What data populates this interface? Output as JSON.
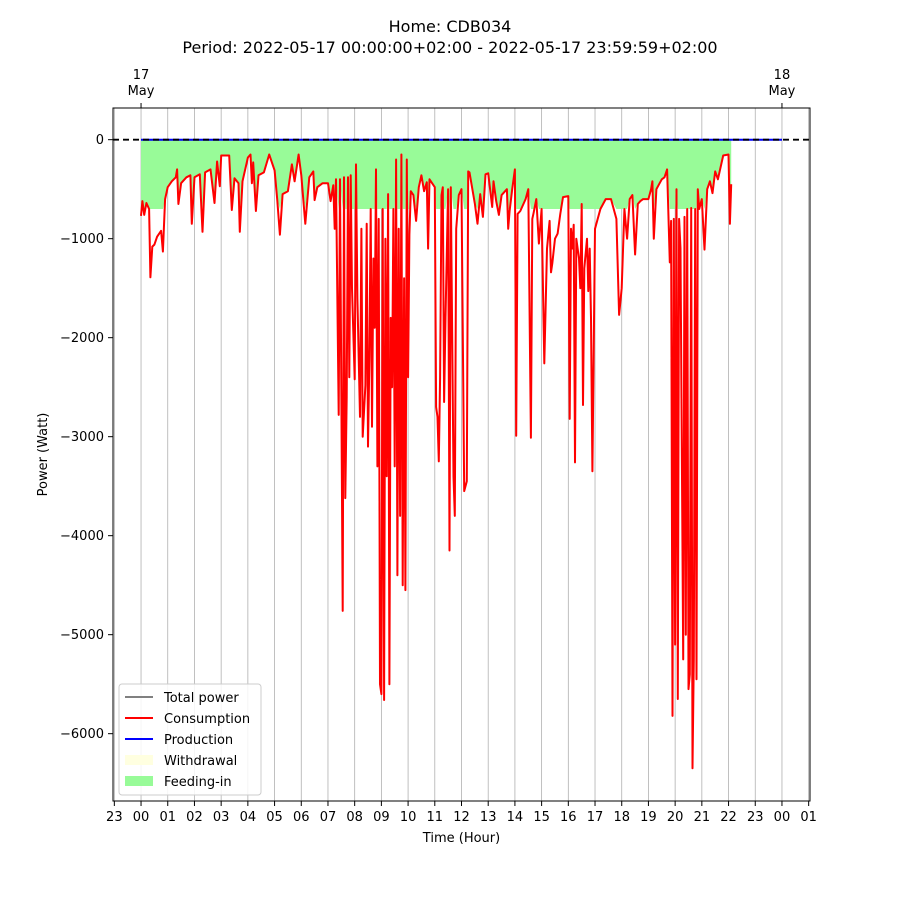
{
  "chart_data": {
    "type": "line",
    "title": "Home: CDB034",
    "subtitle": "Period: 2022-05-17 00:00:00+02:00 - 2022-05-17 23:59:59+02:00",
    "xlabel": "Time (Hour)",
    "ylabel": "Power (Watt)",
    "xlim": [
      -1.05,
      25.05
    ],
    "ylim": [
      -6680,
      320
    ],
    "x_ticks": [
      "23",
      "00",
      "01",
      "02",
      "03",
      "04",
      "05",
      "06",
      "07",
      "08",
      "09",
      "10",
      "11",
      "12",
      "13",
      "14",
      "15",
      "16",
      "17",
      "18",
      "19",
      "20",
      "21",
      "22",
      "23",
      "00",
      "01"
    ],
    "x_tick_values": [
      -1,
      0,
      1,
      2,
      3,
      4,
      5,
      6,
      7,
      8,
      9,
      10,
      11,
      12,
      13,
      14,
      15,
      16,
      17,
      18,
      19,
      20,
      21,
      22,
      23,
      24,
      25
    ],
    "top_ticks": [
      {
        "value": 0,
        "day": "17",
        "month": "May"
      },
      {
        "value": 24,
        "day": "18",
        "month": "May"
      }
    ],
    "y_ticks": [
      0,
      -1000,
      -2000,
      -3000,
      -4000,
      -5000,
      -6000
    ],
    "y_tick_labels": [
      "0",
      "−1000",
      "−2000",
      "−3000",
      "−4000",
      "−5000",
      "−6000"
    ],
    "grid": "vertical-x",
    "legend_position": "lower-left",
    "legend": [
      {
        "label": "Total power",
        "kind": "line",
        "color": "#808080"
      },
      {
        "label": "Consumption",
        "kind": "line",
        "color": "#ff0000"
      },
      {
        "label": "Production",
        "kind": "line",
        "color": "#0000ff"
      },
      {
        "label": "Withdrawal",
        "kind": "patch",
        "color": "#ffffe0"
      },
      {
        "label": "Feeding-in",
        "kind": "patch",
        "color": "#98fb98"
      }
    ],
    "reference_line": {
      "y": 0,
      "style": "dashed",
      "color": "#000000"
    },
    "series": [
      {
        "name": "Consumption",
        "color": "#ff0000",
        "points": [
          [
            0.0,
            -770
          ],
          [
            0.05,
            -620
          ],
          [
            0.12,
            -760
          ],
          [
            0.2,
            -640
          ],
          [
            0.3,
            -700
          ],
          [
            0.35,
            -1390
          ],
          [
            0.42,
            -1080
          ],
          [
            0.5,
            -1060
          ],
          [
            0.6,
            -980
          ],
          [
            0.75,
            -920
          ],
          [
            0.82,
            -1130
          ],
          [
            0.9,
            -600
          ],
          [
            1.0,
            -480
          ],
          [
            1.15,
            -420
          ],
          [
            1.3,
            -380
          ],
          [
            1.35,
            -300
          ],
          [
            1.4,
            -650
          ],
          [
            1.5,
            -440
          ],
          [
            1.7,
            -380
          ],
          [
            1.85,
            -360
          ],
          [
            1.9,
            -850
          ],
          [
            2.0,
            -380
          ],
          [
            2.2,
            -350
          ],
          [
            2.3,
            -930
          ],
          [
            2.4,
            -330
          ],
          [
            2.6,
            -300
          ],
          [
            2.75,
            -640
          ],
          [
            2.85,
            -220
          ],
          [
            2.95,
            -470
          ],
          [
            3.0,
            -160
          ],
          [
            3.3,
            -160
          ],
          [
            3.4,
            -710
          ],
          [
            3.5,
            -390
          ],
          [
            3.65,
            -440
          ],
          [
            3.7,
            -930
          ],
          [
            3.8,
            -420
          ],
          [
            4.0,
            -180
          ],
          [
            4.1,
            -150
          ],
          [
            4.15,
            -440
          ],
          [
            4.2,
            -230
          ],
          [
            4.3,
            -720
          ],
          [
            4.4,
            -360
          ],
          [
            4.6,
            -330
          ],
          [
            4.8,
            -150
          ],
          [
            5.0,
            -310
          ],
          [
            5.1,
            -600
          ],
          [
            5.2,
            -960
          ],
          [
            5.3,
            -550
          ],
          [
            5.5,
            -520
          ],
          [
            5.65,
            -250
          ],
          [
            5.75,
            -420
          ],
          [
            5.9,
            -150
          ],
          [
            6.0,
            -360
          ],
          [
            6.15,
            -850
          ],
          [
            6.3,
            -380
          ],
          [
            6.45,
            -320
          ],
          [
            6.5,
            -610
          ],
          [
            6.6,
            -480
          ],
          [
            6.8,
            -440
          ],
          [
            7.0,
            -440
          ],
          [
            7.1,
            -620
          ],
          [
            7.2,
            -460
          ],
          [
            7.25,
            -900
          ],
          [
            7.3,
            -400
          ],
          [
            7.4,
            -2780
          ],
          [
            7.45,
            -400
          ],
          [
            7.55,
            -4760
          ],
          [
            7.6,
            -380
          ],
          [
            7.65,
            -3620
          ],
          [
            7.7,
            -2600
          ],
          [
            7.75,
            -380
          ],
          [
            7.8,
            -2400
          ],
          [
            7.85,
            -360
          ],
          [
            7.9,
            -1500
          ],
          [
            8.0,
            -2420
          ],
          [
            8.05,
            -250
          ],
          [
            8.1,
            -1600
          ],
          [
            8.2,
            -2800
          ],
          [
            8.25,
            -900
          ],
          [
            8.3,
            -3000
          ],
          [
            8.4,
            -2480
          ],
          [
            8.45,
            -850
          ],
          [
            8.5,
            -3100
          ],
          [
            8.55,
            -2200
          ],
          [
            8.6,
            -700
          ],
          [
            8.65,
            -2900
          ],
          [
            8.7,
            -1200
          ],
          [
            8.75,
            -1900
          ],
          [
            8.8,
            -300
          ],
          [
            8.85,
            -3300
          ],
          [
            8.9,
            -800
          ],
          [
            8.95,
            -5500
          ],
          [
            9.0,
            -5600
          ],
          [
            9.05,
            -700
          ],
          [
            9.1,
            -5660
          ],
          [
            9.15,
            -1000
          ],
          [
            9.2,
            -3400
          ],
          [
            9.25,
            -550
          ],
          [
            9.3,
            -5500
          ],
          [
            9.35,
            -1800
          ],
          [
            9.4,
            -2500
          ],
          [
            9.45,
            -700
          ],
          [
            9.5,
            -3300
          ],
          [
            9.55,
            -200
          ],
          [
            9.6,
            -4400
          ],
          [
            9.65,
            -900
          ],
          [
            9.7,
            -3800
          ],
          [
            9.75,
            -150
          ],
          [
            9.8,
            -4500
          ],
          [
            9.85,
            -1400
          ],
          [
            9.9,
            -4550
          ],
          [
            9.95,
            -200
          ],
          [
            10.0,
            -2400
          ],
          [
            10.05,
            -960
          ],
          [
            10.1,
            -520
          ],
          [
            10.2,
            -560
          ],
          [
            10.3,
            -820
          ],
          [
            10.4,
            -480
          ],
          [
            10.5,
            -360
          ],
          [
            10.6,
            -520
          ],
          [
            10.7,
            -430
          ],
          [
            10.75,
            -1100
          ],
          [
            10.8,
            -400
          ],
          [
            11.0,
            -480
          ],
          [
            11.05,
            -2700
          ],
          [
            11.1,
            -2800
          ],
          [
            11.15,
            -3250
          ],
          [
            11.2,
            -2400
          ],
          [
            11.25,
            -560
          ],
          [
            11.3,
            -480
          ],
          [
            11.35,
            -2650
          ],
          [
            11.4,
            -1800
          ],
          [
            11.5,
            -500
          ],
          [
            11.55,
            -4150
          ],
          [
            11.6,
            -480
          ],
          [
            11.7,
            -3400
          ],
          [
            11.75,
            -3800
          ],
          [
            11.8,
            -900
          ],
          [
            11.9,
            -560
          ],
          [
            12.0,
            -500
          ],
          [
            12.1,
            -3550
          ],
          [
            12.2,
            -3450
          ],
          [
            12.25,
            -320
          ],
          [
            12.3,
            -330
          ],
          [
            12.5,
            -650
          ],
          [
            12.6,
            -850
          ],
          [
            12.7,
            -550
          ],
          [
            12.8,
            -780
          ],
          [
            12.9,
            -350
          ],
          [
            13.0,
            -340
          ],
          [
            13.15,
            -680
          ],
          [
            13.2,
            -420
          ],
          [
            13.3,
            -620
          ],
          [
            13.4,
            -760
          ],
          [
            13.5,
            -560
          ],
          [
            13.6,
            -530
          ],
          [
            13.7,
            -500
          ],
          [
            13.75,
            -900
          ],
          [
            13.8,
            -720
          ],
          [
            13.9,
            -500
          ],
          [
            14.0,
            -300
          ],
          [
            14.05,
            -2990
          ],
          [
            14.1,
            -750
          ],
          [
            14.2,
            -720
          ],
          [
            14.4,
            -600
          ],
          [
            14.5,
            -500
          ],
          [
            14.6,
            -3010
          ],
          [
            14.65,
            -800
          ],
          [
            14.7,
            -740
          ],
          [
            14.8,
            -600
          ],
          [
            14.9,
            -1050
          ],
          [
            15.0,
            -700
          ],
          [
            15.1,
            -2260
          ],
          [
            15.2,
            -1100
          ],
          [
            15.3,
            -820
          ],
          [
            15.35,
            -1340
          ],
          [
            15.4,
            -1250
          ],
          [
            15.5,
            -1000
          ],
          [
            15.6,
            -950
          ],
          [
            15.7,
            -750
          ],
          [
            15.8,
            -580
          ],
          [
            16.0,
            -570
          ],
          [
            16.05,
            -2820
          ],
          [
            16.1,
            -900
          ],
          [
            16.15,
            -1100
          ],
          [
            16.2,
            -860
          ],
          [
            16.25,
            -3260
          ],
          [
            16.3,
            -1000
          ],
          [
            16.4,
            -1200
          ],
          [
            16.45,
            -1500
          ],
          [
            16.5,
            -650
          ],
          [
            16.55,
            -2680
          ],
          [
            16.6,
            -1300
          ],
          [
            16.7,
            -1000
          ],
          [
            16.75,
            -1530
          ],
          [
            16.8,
            -1100
          ],
          [
            16.85,
            -1800
          ],
          [
            16.9,
            -3350
          ],
          [
            17.0,
            -900
          ],
          [
            17.1,
            -800
          ],
          [
            17.2,
            -700
          ],
          [
            17.4,
            -600
          ],
          [
            17.6,
            -600
          ],
          [
            17.8,
            -800
          ],
          [
            17.9,
            -1770
          ],
          [
            18.0,
            -1500
          ],
          [
            18.1,
            -700
          ],
          [
            18.2,
            -1000
          ],
          [
            18.3,
            -600
          ],
          [
            18.4,
            -560
          ],
          [
            18.5,
            -1160
          ],
          [
            18.6,
            -650
          ],
          [
            18.7,
            -620
          ],
          [
            18.8,
            -600
          ],
          [
            19.0,
            -600
          ],
          [
            19.1,
            -500
          ],
          [
            19.15,
            -420
          ],
          [
            19.2,
            -1000
          ],
          [
            19.3,
            -500
          ],
          [
            19.4,
            -450
          ],
          [
            19.5,
            -400
          ],
          [
            19.6,
            -380
          ],
          [
            19.7,
            -300
          ],
          [
            19.8,
            -1240
          ],
          [
            19.85,
            -820
          ],
          [
            19.9,
            -5820
          ],
          [
            19.95,
            -800
          ],
          [
            20.0,
            -5100
          ],
          [
            20.05,
            -500
          ],
          [
            20.1,
            -5650
          ],
          [
            20.15,
            -800
          ],
          [
            20.2,
            -1100
          ],
          [
            20.3,
            -5250
          ],
          [
            20.35,
            -780
          ],
          [
            20.4,
            -5000
          ],
          [
            20.45,
            -700
          ],
          [
            20.5,
            -5550
          ],
          [
            20.55,
            -5400
          ],
          [
            20.6,
            -690
          ],
          [
            20.65,
            -6350
          ],
          [
            20.7,
            -5250
          ],
          [
            20.75,
            -700
          ],
          [
            20.8,
            -5450
          ],
          [
            20.85,
            -500
          ],
          [
            20.9,
            -700
          ],
          [
            21.0,
            -600
          ],
          [
            21.1,
            -1110
          ],
          [
            21.2,
            -500
          ],
          [
            21.3,
            -420
          ],
          [
            21.4,
            -540
          ],
          [
            21.5,
            -320
          ],
          [
            21.6,
            -400
          ],
          [
            21.8,
            -160
          ],
          [
            22.0,
            -150
          ],
          [
            22.05,
            -850
          ],
          [
            22.1,
            -450
          ]
        ]
      },
      {
        "name": "Production",
        "color": "#0000ff",
        "points": [
          [
            0.0,
            0
          ],
          [
            24.0,
            0
          ]
        ]
      }
    ]
  }
}
